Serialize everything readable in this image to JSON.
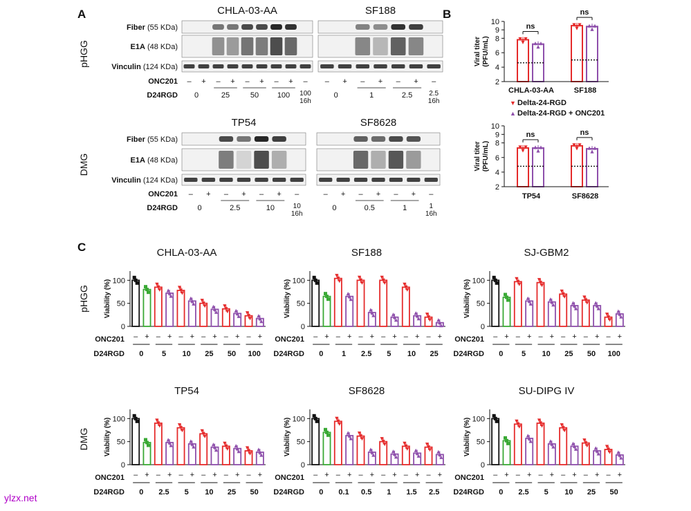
{
  "panel_labels": {
    "a": "A",
    "b": "B",
    "c": "C"
  },
  "group_labels": {
    "phgg": "pHGG",
    "dmg": "DMG"
  },
  "blots": [
    {
      "title": "CHLA-03-AA",
      "row_labels": [
        {
          "bold": "Fiber",
          "rest": " (55 KDa)"
        },
        {
          "bold": "E1A",
          "rest": " (48 KDa)"
        },
        {
          "bold": "Vinculin",
          "rest": " (124 KDa)"
        }
      ],
      "onc_label": "ONC201",
      "d24_label": "D24RGD",
      "onc": [
        "–",
        "+",
        "–",
        "+",
        "–",
        "+",
        "–",
        "+",
        "–"
      ],
      "doses": [
        "0",
        "25",
        "50",
        "100"
      ],
      "last_dose": [
        "100",
        "16h"
      ],
      "fiber": [
        0,
        0,
        0.55,
        0.55,
        0.75,
        0.75,
        0.9,
        0.85,
        0
      ],
      "e1a": [
        0,
        0,
        0.5,
        0.45,
        0.65,
        0.6,
        0.85,
        0.7,
        0
      ]
    },
    {
      "title": "SF188",
      "onc": [
        "–",
        "+",
        "–",
        "+",
        "–",
        "+",
        "–"
      ],
      "doses": [
        "0",
        "1",
        "2.5"
      ],
      "last_dose": [
        "2.5",
        "16h"
      ],
      "fiber": [
        0,
        0,
        0.5,
        0.45,
        0.85,
        0.8,
        0
      ],
      "e1a": [
        0,
        0,
        0.55,
        0.3,
        0.75,
        0.55,
        0
      ]
    },
    {
      "title": "TP54",
      "row_labels": [
        {
          "bold": "Fiber",
          "rest": " (55 KDa)"
        },
        {
          "bold": "E1A",
          "rest": " (48 KDa)"
        },
        {
          "bold": "Vinculin",
          "rest": " (124 KDa)"
        }
      ],
      "onc_label": "ONC201",
      "d24_label": "D24RGD",
      "onc": [
        "–",
        "+",
        "–",
        "+",
        "–",
        "+",
        "–"
      ],
      "doses": [
        "0",
        "2.5",
        "10"
      ],
      "last_dose": [
        "10",
        "16h"
      ],
      "fiber": [
        0,
        0,
        0.75,
        0.55,
        0.9,
        0.8,
        0
      ],
      "e1a": [
        0,
        0,
        0.6,
        0.15,
        0.85,
        0.35,
        0
      ]
    },
    {
      "title": "SF8628",
      "onc": [
        "–",
        "+",
        "–",
        "+",
        "–",
        "+",
        "–"
      ],
      "doses": [
        "0",
        "0.5",
        "1"
      ],
      "last_dose": [
        "1",
        "16h"
      ],
      "fiber": [
        0,
        0,
        0.65,
        0.6,
        0.75,
        0.7,
        0
      ],
      "e1a": [
        0,
        0,
        0.7,
        0.35,
        0.8,
        0.45,
        0
      ]
    }
  ],
  "titer_axis": {
    "ylabel_1": "Viral titer",
    "ylabel_2": "(PFU/mL)",
    "ticks": [
      "2",
      "4",
      "6",
      "8",
      "9",
      "10"
    ]
  },
  "titer_charts": [
    {
      "groups": [
        "CHLA-03-AA",
        "SF188"
      ],
      "bars": [
        [
          7.8,
          7.2
        ],
        [
          9.5,
          9.4
        ]
      ],
      "sig": [
        "ns",
        "ns"
      ],
      "dotted": [
        4.6,
        5.0
      ]
    },
    {
      "groups": [
        "TP54",
        "SF8628"
      ],
      "bars": [
        [
          7.3,
          7.3
        ],
        [
          7.6,
          7.2
        ]
      ],
      "sig": [
        "ns",
        "ns"
      ],
      "dotted": [
        4.8,
        4.8
      ]
    }
  ],
  "legend": [
    {
      "marker": "▼",
      "label": "Delta-24-RGD",
      "color": "#e52a2a"
    },
    {
      "marker": "▲",
      "label": "Delta-24-RGD + ONC201",
      "color": "#8e4fab"
    }
  ],
  "colors": {
    "black": "#111111",
    "green": "#3aa935",
    "red": "#e52a2a",
    "purple": "#8e4fab"
  },
  "viability_axis": {
    "ylabel": "Viability (%)",
    "ticks": [
      "0",
      "50",
      "100"
    ],
    "onc_label": "ONC201",
    "d24_label": "D24RGD",
    "minus": "–",
    "plus": "+"
  },
  "chart_data": [
    {
      "type": "bar",
      "title": "CHLA-03-AA",
      "ylabel": "Viability (%)",
      "ylim": [
        0,
        120
      ],
      "categories": [
        "0",
        "5",
        "10",
        "25",
        "50",
        "100"
      ],
      "series": [
        {
          "name": "ONC201 –",
          "values": [
            100,
            85,
            78,
            50,
            38,
            23
          ]
        },
        {
          "name": "ONC201 +",
          "values": [
            80,
            72,
            55,
            37,
            28,
            17
          ]
        }
      ]
    },
    {
      "type": "bar",
      "title": "SF188",
      "ylabel": "Viability (%)",
      "ylim": [
        0,
        120
      ],
      "categories": [
        "0",
        "1",
        "2.5",
        "5",
        "10",
        "25"
      ],
      "series": [
        {
          "name": "ONC201 –",
          "values": [
            100,
            104,
            100,
            100,
            85,
            20
          ]
        },
        {
          "name": "ONC201 +",
          "values": [
            65,
            65,
            30,
            20,
            23,
            8
          ]
        }
      ]
    },
    {
      "type": "bar",
      "title": "SJ-GBM2",
      "ylabel": "Viability (%)",
      "ylim": [
        0,
        120
      ],
      "categories": [
        "0",
        "5",
        "10",
        "25",
        "50",
        "100"
      ],
      "series": [
        {
          "name": "ONC201 –",
          "values": [
            100,
            97,
            95,
            70,
            57,
            20
          ]
        },
        {
          "name": "ONC201 +",
          "values": [
            63,
            55,
            53,
            45,
            45,
            27
          ]
        }
      ]
    },
    {
      "type": "bar",
      "title": "TP54",
      "ylabel": "Viability (%)",
      "ylim": [
        0,
        120
      ],
      "categories": [
        "0",
        "2.5",
        "5",
        "10",
        "25",
        "50"
      ],
      "series": [
        {
          "name": "ONC201 –",
          "values": [
            100,
            90,
            80,
            67,
            40,
            30
          ]
        },
        {
          "name": "ONC201 +",
          "values": [
            48,
            48,
            45,
            38,
            35,
            27
          ]
        }
      ]
    },
    {
      "type": "bar",
      "title": "SF8628",
      "ylabel": "Viability (%)",
      "ylim": [
        0,
        120
      ],
      "categories": [
        "0",
        "0.1",
        "0.5",
        "1",
        "1.5",
        "2.5"
      ],
      "series": [
        {
          "name": "ONC201 –",
          "values": [
            100,
            94,
            62,
            50,
            40,
            38
          ]
        },
        {
          "name": "ONC201 +",
          "values": [
            70,
            63,
            27,
            23,
            25,
            22
          ]
        }
      ]
    },
    {
      "type": "bar",
      "title": "SU-DIPG IV",
      "ylabel": "Viability (%)",
      "ylim": [
        0,
        120
      ],
      "categories": [
        "0",
        "2.5",
        "5",
        "10",
        "25",
        "50"
      ],
      "series": [
        {
          "name": "ONC201 –",
          "values": [
            100,
            88,
            90,
            80,
            47,
            33
          ]
        },
        {
          "name": "ONC201 +",
          "values": [
            52,
            57,
            45,
            40,
            30,
            21
          ]
        }
      ]
    }
  ],
  "watermark": "ylzx.net"
}
